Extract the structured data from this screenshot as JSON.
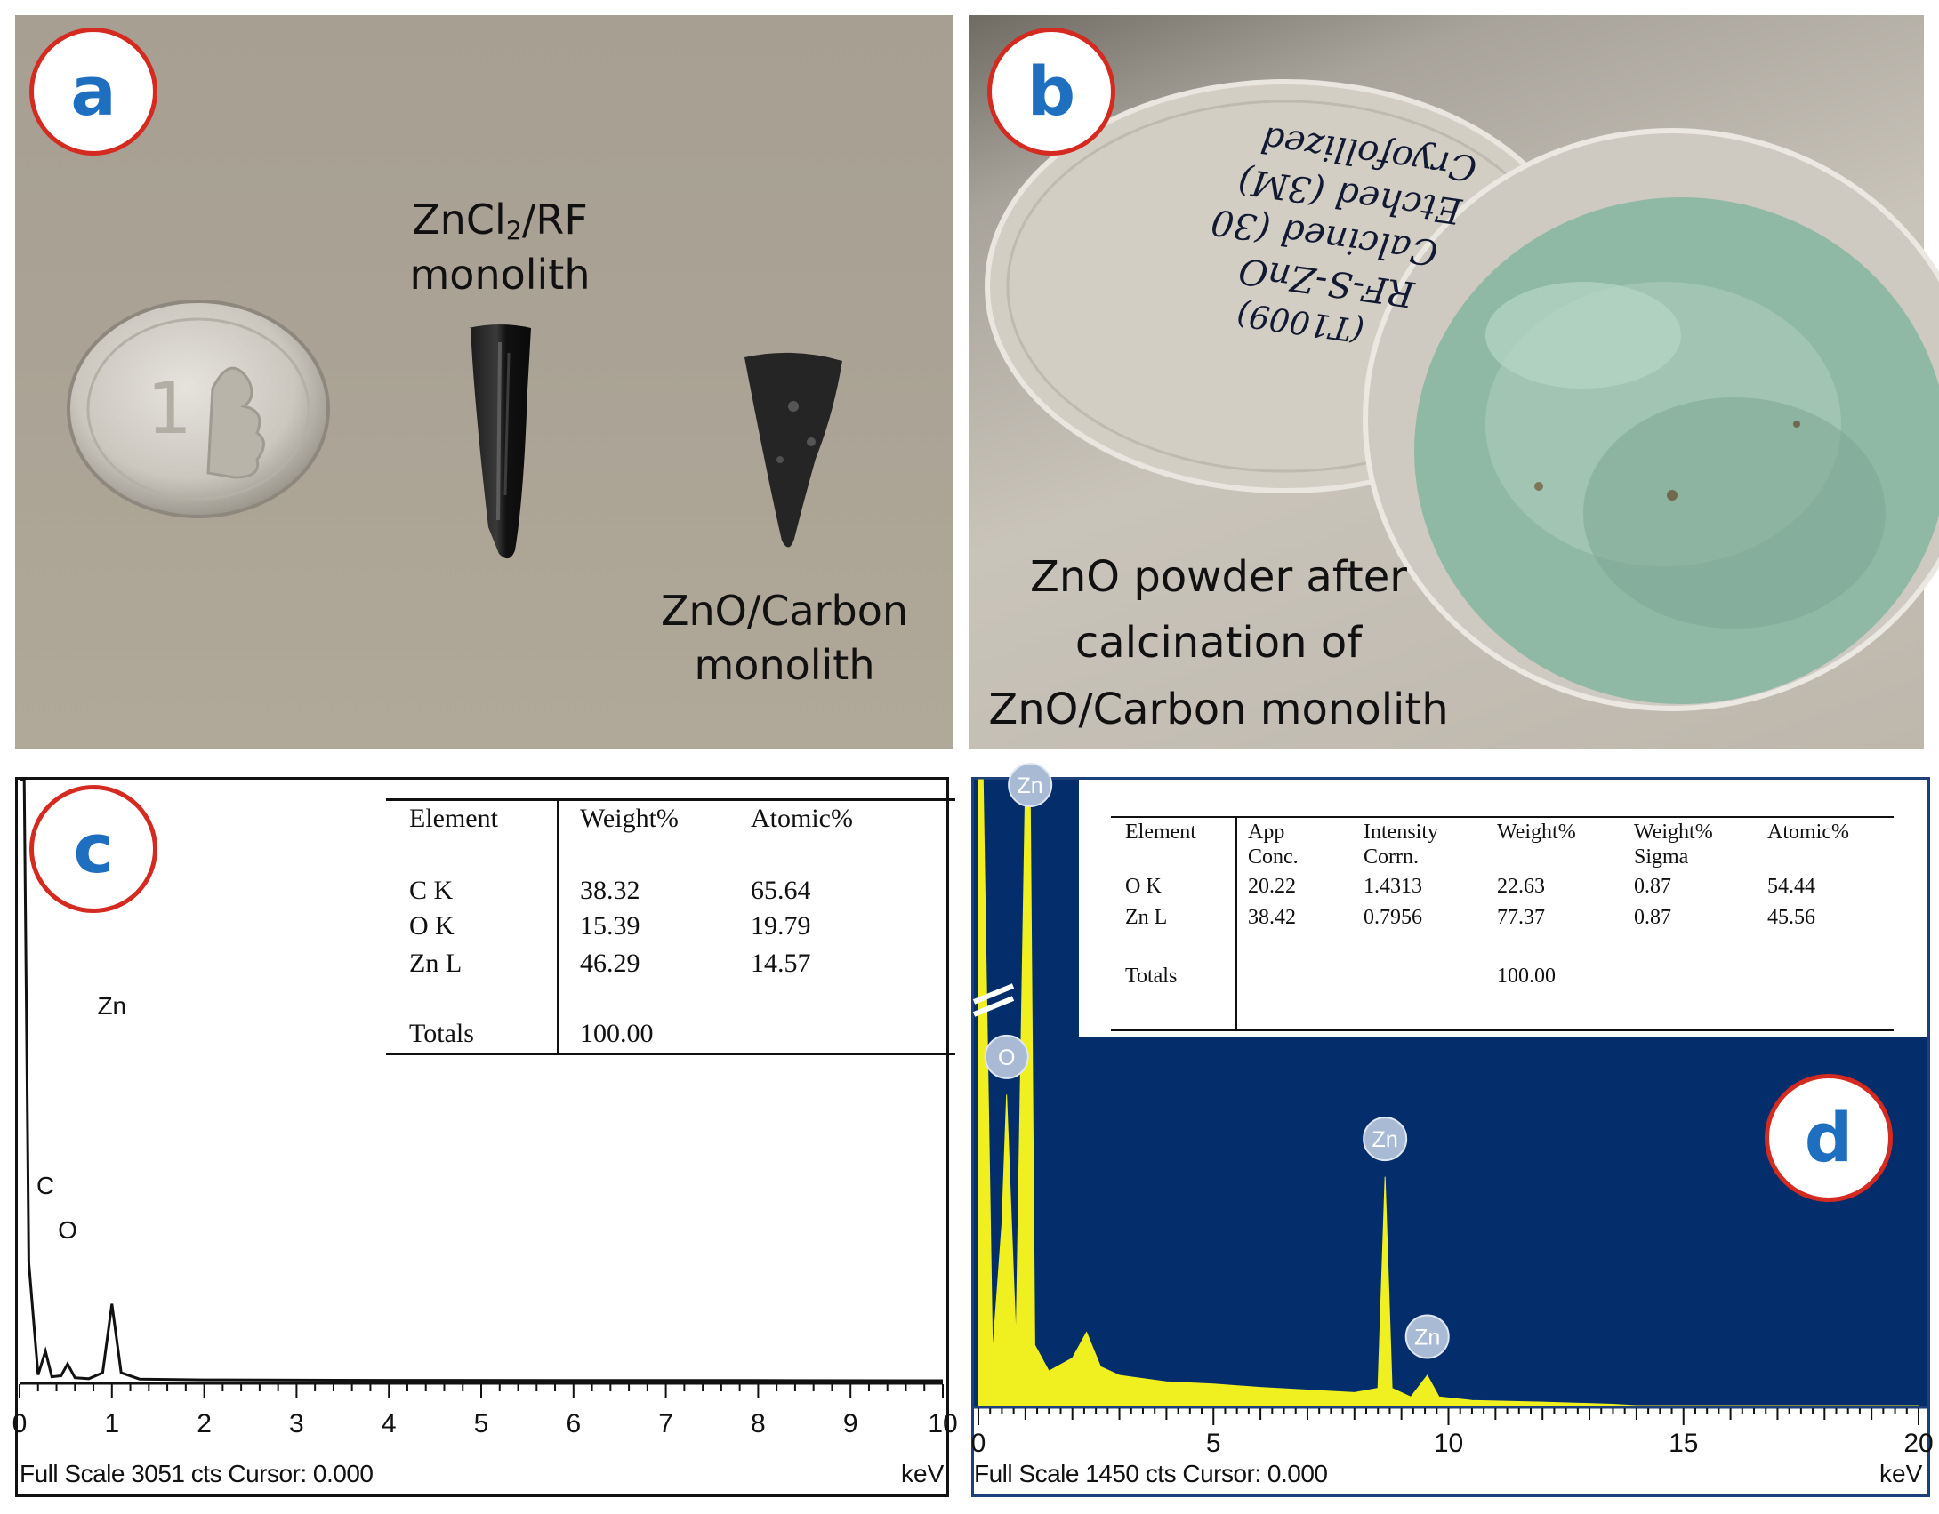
{
  "panel_a": {
    "label": "a",
    "caption_zncl2": [
      "ZnCl",
      "2",
      "/RF",
      "monolith"
    ],
    "caption_zno_carbon": [
      "ZnO/Carbon",
      "monolith"
    ],
    "coin_text": "1"
  },
  "panel_b": {
    "label": "b",
    "caption": [
      "ZnO powder after",
      "calcination of",
      "ZnO/Carbon monolith"
    ],
    "lid_handwriting": [
      "(T1009)",
      "RF-S-ZnO",
      "Calcined (30",
      "Etched (3M)",
      "Cryofollized"
    ]
  },
  "panel_c": {
    "label": "c",
    "table": {
      "headers": [
        "Element",
        "Weight%",
        "Atomic%"
      ],
      "rows": [
        [
          "C K",
          "38.32",
          "65.64"
        ],
        [
          "O K",
          "15.39",
          "19.79"
        ],
        [
          "Zn L",
          "46.29",
          "14.57"
        ]
      ],
      "totals": [
        "Totals",
        "100.00"
      ]
    },
    "footer": "Full Scale 3051 cts Cursor: 0.000",
    "unit": "keV",
    "x_ticks": [
      "0",
      "1",
      "2",
      "3",
      "4",
      "5",
      "6",
      "7",
      "8",
      "9",
      "10"
    ],
    "peak_labels": [
      "C",
      "O",
      "Zn"
    ]
  },
  "panel_d": {
    "label": "d",
    "table": {
      "headers": [
        [
          "Element"
        ],
        [
          "App",
          "Conc."
        ],
        [
          "Intensity",
          "Corrn."
        ],
        [
          "Weight%"
        ],
        [
          "Weight%",
          "Sigma"
        ],
        [
          "Atomic%"
        ]
      ],
      "rows": [
        [
          "O K",
          "20.22",
          "1.4313",
          "22.63",
          "0.87",
          "54.44"
        ],
        [
          "Zn L",
          "38.42",
          "0.7956",
          "77.37",
          "0.87",
          "45.56"
        ]
      ],
      "totals": [
        "Totals",
        "100.00"
      ]
    },
    "footer": "Full Scale 1450 cts Cursor: 0.000",
    "unit": "keV",
    "x_ticks": [
      "0",
      "5",
      "10",
      "15",
      "20"
    ],
    "peak_labels": [
      "Zn",
      "O",
      "Zn",
      "Zn"
    ]
  },
  "colors": {
    "badge_border": "#d42a20",
    "badge_text": "#1f6fc0",
    "spectrum_d_bg": "#032d6b",
    "spectrum_d_fill": "#f0f020",
    "peak_badge": "#a9bbd4"
  },
  "chart_data": [
    {
      "type": "line",
      "title": "",
      "xlabel": "keV",
      "ylabel": "",
      "xlim": [
        0,
        10
      ],
      "series": [
        {
          "x": [
            0.0,
            0.05,
            0.1,
            0.2,
            0.28,
            0.35,
            0.45,
            0.52,
            0.6,
            0.75,
            0.9,
            1.0,
            1.1,
            1.3,
            2.0,
            4.0,
            6.0,
            8.0,
            10.0
          ],
          "y": [
            3051,
            3051,
            600,
            30,
            150,
            20,
            25,
            85,
            15,
            10,
            40,
            390,
            40,
            8,
            4,
            2,
            1,
            1,
            0
          ]
        }
      ],
      "annotations": [
        "C",
        "O",
        "Zn"
      ]
    },
    {
      "type": "area",
      "title": "",
      "xlabel": "keV",
      "ylabel": "",
      "xlim": [
        0,
        20
      ],
      "series": [
        {
          "x": [
            0.0,
            0.1,
            0.3,
            0.5,
            0.6,
            0.8,
            1.0,
            1.1,
            1.2,
            1.5,
            2.0,
            2.3,
            2.6,
            3.0,
            4.0,
            5.0,
            6.0,
            7.0,
            8.0,
            8.5,
            8.65,
            8.8,
            9.2,
            9.55,
            9.8,
            10.5,
            12.0,
            13.5,
            14.0,
            20.0
          ],
          "y": [
            1450,
            1450,
            120,
            420,
            720,
            150,
            1450,
            1450,
            140,
            80,
            110,
            170,
            90,
            70,
            55,
            50,
            42,
            36,
            30,
            40,
            530,
            40,
            20,
            70,
            20,
            12,
            8,
            3,
            0,
            0
          ]
        }
      ],
      "annotations": [
        "Zn",
        "O",
        "Zn",
        "Zn"
      ]
    }
  ]
}
